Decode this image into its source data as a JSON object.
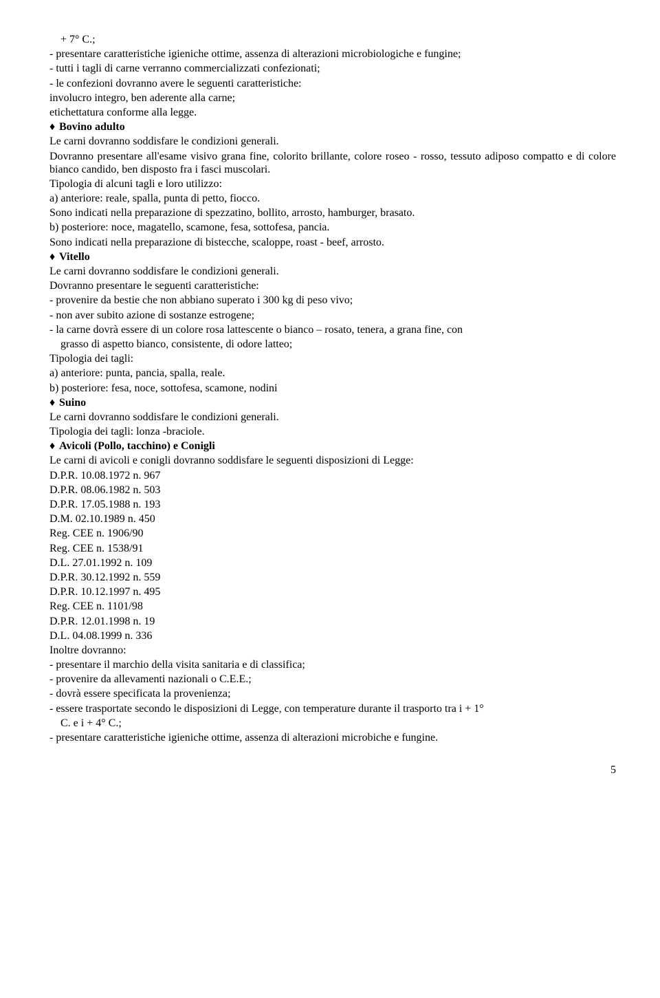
{
  "line1": "+ 7° C.;",
  "line2": "- presentare caratteristiche igieniche ottime, assenza di alterazioni microbiologiche e fungine;",
  "line3": "- tutti i tagli di carne verranno commercializzati confezionati;",
  "line4": "- le confezioni dovranno avere le seguenti caratteristiche:",
  "line5": "involucro integro, ben aderente alla carne;",
  "line6": "etichettatura conforme alla legge.",
  "bullet_sym": "♦",
  "bovino_title": "Bovino adulto",
  "bovino_p1": "Le carni dovranno soddisfare le condizioni generali.",
  "bovino_p2": "Dovranno presentare all'esame visivo grana fine, colorito brillante, colore roseo - rosso, tessuto adiposo compatto e di colore bianco candido, ben disposto fra i fasci muscolari.",
  "bovino_p3": "Tipologia di alcuni tagli e loro utilizzo:",
  "bovino_p4": "a) anteriore: reale, spalla, punta di petto, fiocco.",
  "bovino_p5": "Sono indicati nella preparazione di spezzatino, bollito, arrosto, hamburger, brasato.",
  "bovino_p6": "b) posteriore: noce, magatello, scamone, fesa, sottofesa, pancia.",
  "bovino_p7": "Sono indicati nella preparazione di bistecche, scaloppe, roast - beef, arrosto.",
  "vitello_title": "Vitello",
  "vitello_p1": "Le carni dovranno soddisfare le condizioni generali.",
  "vitello_p2": "Dovranno presentare le seguenti caratteristiche:",
  "vitello_i1": "- provenire da bestie che non abbiano superato i 300 kg di peso vivo;",
  "vitello_i2": "- non aver subito azione di sostanze estrogene;",
  "vitello_i3a": "- la carne dovrà essere di un colore rosa lattescente o bianco – rosato, tenera, a grana fine, con",
  "vitello_i3b": "grasso di aspetto bianco, consistente, di odore latteo;",
  "vitello_p3": "Tipologia dei tagli:",
  "vitello_p4": "a) anteriore: punta, pancia, spalla, reale.",
  "vitello_p5": "b) posteriore: fesa, noce, sottofesa, scamone, nodini",
  "suino_title": "Suino",
  "suino_p1": "Le carni dovranno soddisfare le condizioni generali.",
  "suino_p2": "Tipologia dei tagli: lonza -braciole.",
  "avicoli_title": "Avicoli (Pollo, tacchino) e Conigli",
  "avicoli_p1": "Le carni di avicoli e conigli dovranno soddisfare le seguenti disposizioni di Legge:",
  "ref1": "D.P.R. 10.08.1972 n. 967",
  "ref2": "D.P.R. 08.06.1982 n. 503",
  "ref3": "D.P.R. 17.05.1988 n. 193",
  "ref4": "D.M. 02.10.1989 n. 450",
  "ref5": "Reg. CEE n. 1906/90",
  "ref6": "Reg. CEE n. 1538/91",
  "ref7": "D.L. 27.01.1992 n. 109",
  "ref8": "D.P.R. 30.12.1992 n. 559",
  "ref9": "D.P.R. 10.12.1997 n. 495",
  "ref10": "Reg. CEE n. 1101/98",
  "ref11": "D.P.R. 12.01.1998 n. 19",
  "ref12": "D.L. 04.08.1999 n. 336",
  "inoltre": "Inoltre dovranno:",
  "in_i1": "- presentare il marchio della visita sanitaria e di classifica;",
  "in_i2": "- provenire da allevamenti nazionali o C.E.E.;",
  "in_i3": "- dovrà essere specificata la provenienza;",
  "in_i4a": "- essere trasportate secondo le disposizioni di Legge, con temperature durante il trasporto tra i + 1°",
  "in_i4b": "C. e i + 4° C.;",
  "in_i5": "- presentare caratteristiche igieniche ottime, assenza di alterazioni microbiche e fungine.",
  "page_num": "5"
}
